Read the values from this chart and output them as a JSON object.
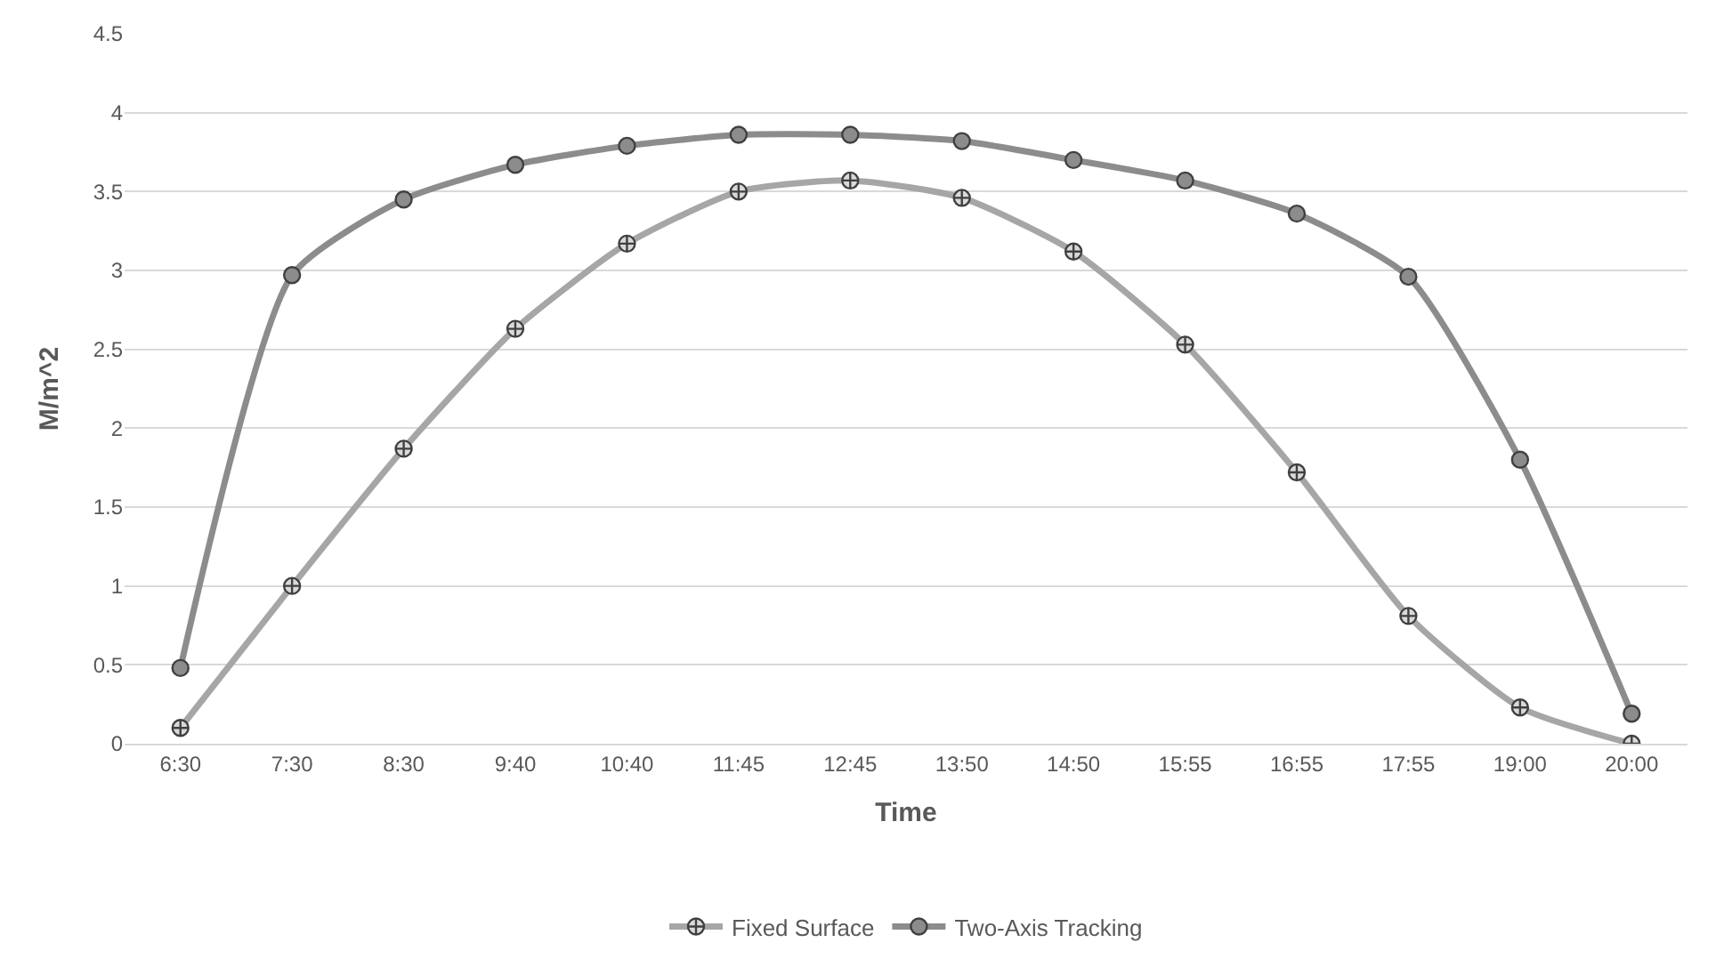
{
  "chart_data": {
    "type": "line",
    "xlabel": "Time",
    "ylabel": "M/m^2",
    "categories": [
      "6:30",
      "7:30",
      "8:30",
      "9:40",
      "10:40",
      "11:45",
      "12:45",
      "13:50",
      "14:50",
      "15:55",
      "16:55",
      "17:55",
      "19:00",
      "20:00"
    ],
    "series": [
      {
        "name": "Fixed Surface",
        "color": "#a6a6a6",
        "marker": "cross",
        "values": [
          0.1,
          1.0,
          1.87,
          2.63,
          3.17,
          3.5,
          3.57,
          3.46,
          3.12,
          2.53,
          1.72,
          0.81,
          0.23,
          0.0
        ]
      },
      {
        "name": "Two-Axis Tracking",
        "color": "#8c8c8c",
        "marker": "circle",
        "values": [
          0.48,
          2.97,
          3.45,
          3.67,
          3.79,
          3.86,
          3.86,
          3.82,
          3.7,
          3.57,
          3.36,
          2.96,
          1.8,
          0.19
        ]
      }
    ],
    "ylim": [
      0,
      4.5
    ],
    "yticks": [
      0,
      0.5,
      1,
      1.5,
      2,
      2.5,
      3,
      3.5,
      4,
      4.5
    ],
    "grid": "y",
    "legend": "bottom",
    "line_style": "solid"
  }
}
